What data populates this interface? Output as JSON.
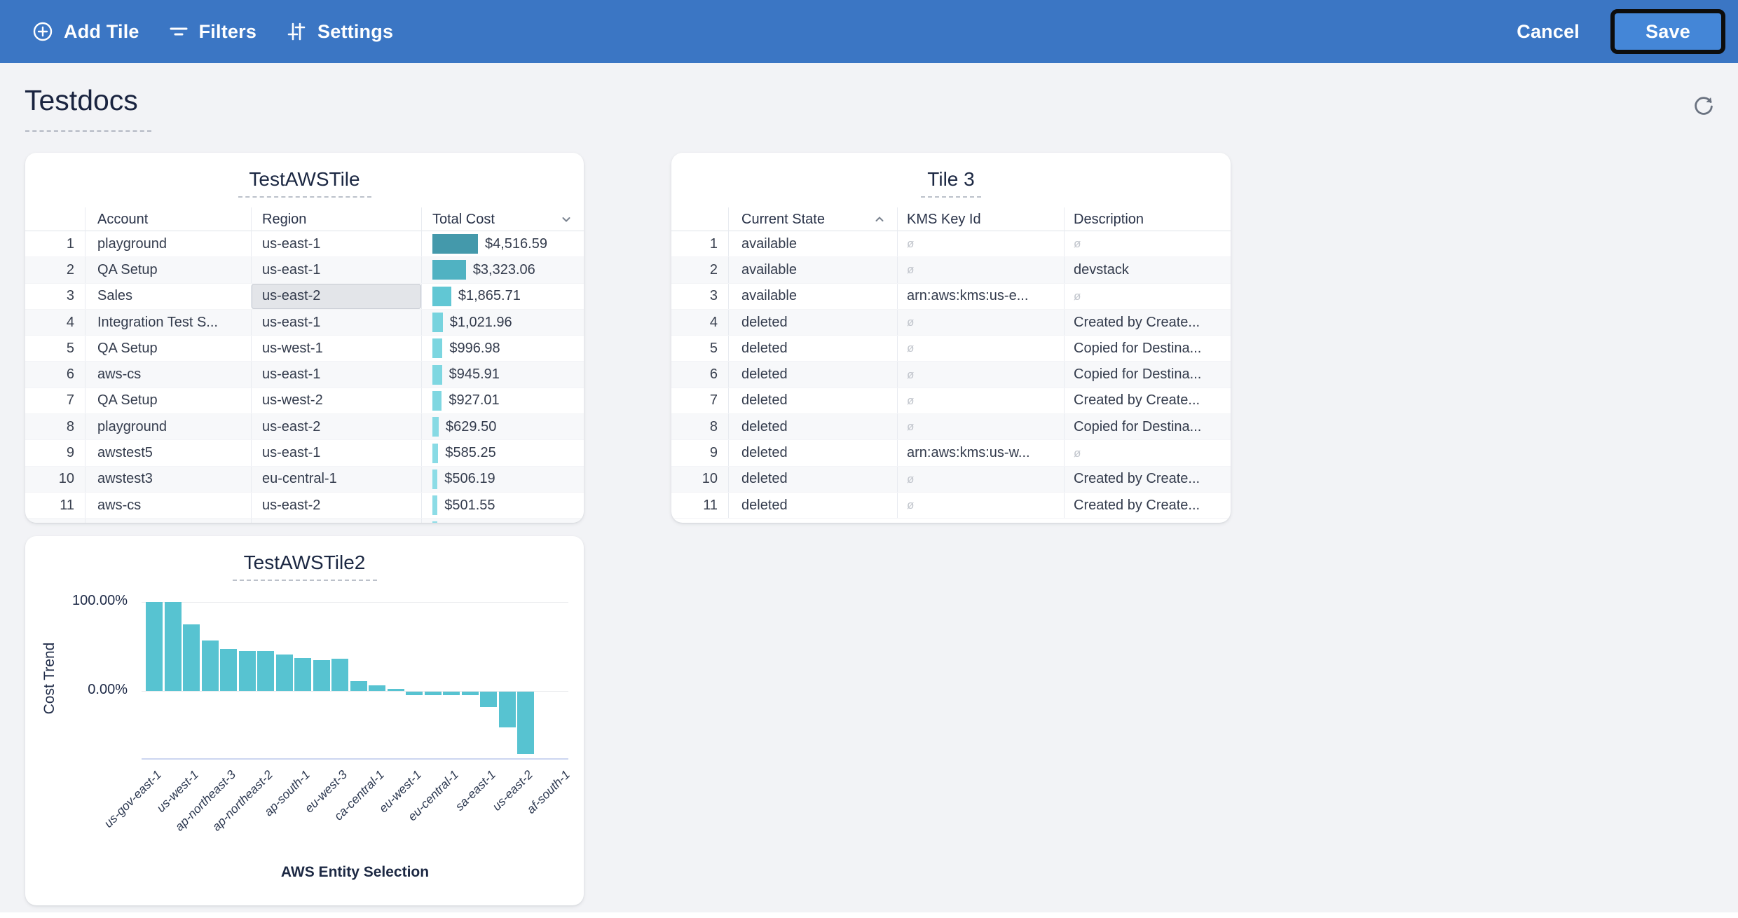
{
  "topbar": {
    "add_tile": "Add Tile",
    "filters": "Filters",
    "settings": "Settings",
    "cancel": "Cancel",
    "save": "Save",
    "bg_color": "#3b76c4",
    "save_bg_color": "#4486d7"
  },
  "page": {
    "title": "Testdocs"
  },
  "tile1": {
    "title": "TestAWSTile",
    "columns": [
      "Account",
      "Region",
      "Total Cost"
    ],
    "sort": {
      "column": "Total Cost",
      "direction": "desc"
    },
    "max_value": 4516.59,
    "rows": [
      {
        "n": "1",
        "account": "playground",
        "region": "us-east-1",
        "cost": "$4,516.59",
        "value": 4516.59,
        "bar_color": "#4499ab",
        "region_selected": false
      },
      {
        "n": "2",
        "account": "QA Setup",
        "region": "us-east-1",
        "cost": "$3,323.06",
        "value": 3323.06,
        "bar_color": "#50b2c2",
        "region_selected": false
      },
      {
        "n": "3",
        "account": "Sales",
        "region": "us-east-2",
        "cost": "$1,865.71",
        "value": 1865.71,
        "bar_color": "#61c7d4",
        "region_selected": true
      },
      {
        "n": "4",
        "account": "Integration Test S...",
        "region": "us-east-1",
        "cost": "$1,021.96",
        "value": 1021.96,
        "bar_color": "#77d3de",
        "region_selected": false
      },
      {
        "n": "5",
        "account": "QA Setup",
        "region": "us-west-1",
        "cost": "$996.98",
        "value": 996.98,
        "bar_color": "#7cd6e0",
        "region_selected": false
      },
      {
        "n": "6",
        "account": "aws-cs",
        "region": "us-east-1",
        "cost": "$945.91",
        "value": 945.91,
        "bar_color": "#7fd7e1",
        "region_selected": false
      },
      {
        "n": "7",
        "account": "QA Setup",
        "region": "us-west-2",
        "cost": "$927.01",
        "value": 927.01,
        "bar_color": "#80d7e1",
        "region_selected": false
      },
      {
        "n": "8",
        "account": "playground",
        "region": "us-east-2",
        "cost": "$629.50",
        "value": 629.5,
        "bar_color": "#87dae4",
        "region_selected": false
      },
      {
        "n": "9",
        "account": "awstest5",
        "region": "us-east-1",
        "cost": "$585.25",
        "value": 585.25,
        "bar_color": "#89dbe5",
        "region_selected": false
      },
      {
        "n": "10",
        "account": "awstest3",
        "region": "eu-central-1",
        "cost": "$506.19",
        "value": 506.19,
        "bar_color": "#8cdce6",
        "region_selected": false
      },
      {
        "n": "11",
        "account": "aws-cs",
        "region": "us-east-2",
        "cost": "$501.55",
        "value": 501.55,
        "bar_color": "#8cdce6",
        "region_selected": false
      }
    ],
    "partial_row_visible": true,
    "partial_row_bar_color": "#8edde7"
  },
  "tile3": {
    "title": "Tile 3",
    "columns": [
      "Current State",
      "KMS Key Id",
      "Description"
    ],
    "sort": {
      "column": "Current State",
      "direction": "asc"
    },
    "null_symbol": "ø",
    "rows": [
      {
        "n": "1",
        "state": "available",
        "kms": null,
        "desc": null
      },
      {
        "n": "2",
        "state": "available",
        "kms": null,
        "desc": "devstack"
      },
      {
        "n": "3",
        "state": "available",
        "kms": "arn:aws:kms:us-e...",
        "desc": null
      },
      {
        "n": "4",
        "state": "deleted",
        "kms": null,
        "desc": "Created by Create..."
      },
      {
        "n": "5",
        "state": "deleted",
        "kms": null,
        "desc": "Copied for Destina..."
      },
      {
        "n": "6",
        "state": "deleted",
        "kms": null,
        "desc": "Copied for Destina..."
      },
      {
        "n": "7",
        "state": "deleted",
        "kms": null,
        "desc": "Created by Create..."
      },
      {
        "n": "8",
        "state": "deleted",
        "kms": null,
        "desc": "Copied for Destina..."
      },
      {
        "n": "9",
        "state": "deleted",
        "kms": "arn:aws:kms:us-w...",
        "desc": null
      },
      {
        "n": "10",
        "state": "deleted",
        "kms": null,
        "desc": "Created by Create..."
      },
      {
        "n": "11",
        "state": "deleted",
        "kms": null,
        "desc": "Created by Create..."
      }
    ]
  },
  "chart_data": {
    "type": "bar",
    "title": "TestAWSTile2",
    "xlabel": "AWS Entity Selection",
    "ylabel": "Cost Trend",
    "yticks": [
      "100.00%",
      "0.00%"
    ],
    "ylim": [
      -75,
      100
    ],
    "grid": "horizontal lines at 0% and 100%",
    "legend": "none",
    "bar_color": "#57c3d1",
    "values": [
      100,
      100,
      75,
      57,
      47,
      45,
      45,
      41,
      37,
      35,
      36,
      11,
      6,
      2,
      -4,
      -4,
      -4,
      -4,
      -17,
      -40,
      -70,
      0,
      0
    ],
    "x_tick_labels": [
      "us-gov-east-1",
      "us-west-1",
      "ap-northeast-3",
      "ap-northeast-2",
      "ap-south-1",
      "eu-west-3",
      "ca-central-1",
      "eu-west-1",
      "eu-central-1",
      "sa-east-1",
      "us-east-2",
      "af-south-1"
    ],
    "x_tick_label_every_n_bars": 2
  }
}
